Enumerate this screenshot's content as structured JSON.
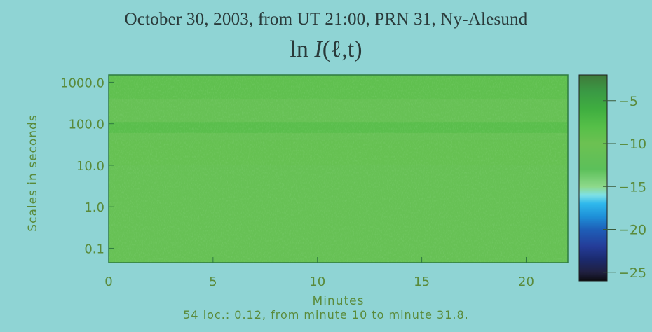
{
  "chart_data": {
    "type": "heatmap",
    "title": "October 30, 2003, from UT 21:00, PRN 31, Ny-Alesund",
    "subtitle": {
      "prefix": "ln",
      "var": "I",
      "args": "(ℓ,t)"
    },
    "xlabel": "Minutes",
    "ylabel": "Scales in seconds",
    "x_ticks": [
      0,
      5,
      10,
      15,
      20
    ],
    "x_range": [
      0,
      22
    ],
    "y_scale": "log",
    "y_ticks": [
      "0.1",
      "1.0",
      "10.0",
      "100.0",
      "1000.0"
    ],
    "y_range": [
      0.045,
      1500
    ],
    "footer": "54 loc.:  0.12, from minute  10  to minute  31.8.",
    "colorbar": {
      "range": [
        -26,
        -2
      ],
      "ticks": [
        -5,
        -10,
        -15,
        -20,
        -25
      ],
      "stops": [
        {
          "v": -2,
          "color": "#3f7a3a"
        },
        {
          "v": -4,
          "color": "#3a9a44"
        },
        {
          "v": -6,
          "color": "#3fae40"
        },
        {
          "v": -8,
          "color": "#55bf48"
        },
        {
          "v": -10,
          "color": "#6cc152"
        },
        {
          "v": -13,
          "color": "#5cc05a"
        },
        {
          "v": -15,
          "color": "#8ed98a"
        },
        {
          "v": -16,
          "color": "#7fe0e6"
        },
        {
          "v": -17,
          "color": "#2fb8ec"
        },
        {
          "v": -18.5,
          "color": "#1e90d8"
        },
        {
          "v": -20,
          "color": "#1e5fb8"
        },
        {
          "v": -22,
          "color": "#243c98"
        },
        {
          "v": -23.5,
          "color": "#1b2a6e"
        },
        {
          "v": -25,
          "color": "#202040"
        },
        {
          "v": -26,
          "color": "#0c0c10"
        }
      ]
    },
    "field": {
      "dominant_value": -11,
      "bands": [
        {
          "scale_min": 400,
          "scale_max": 1500,
          "value": -8.5
        },
        {
          "scale_min": 60,
          "scale_max": 110,
          "value": -7.5
        },
        {
          "scale_min": 10,
          "scale_max": 40,
          "value": -9.5
        }
      ]
    },
    "colors": {
      "text": "#5a8a3a",
      "frame": "#2e7a40",
      "background": "#8fd4d4"
    }
  }
}
